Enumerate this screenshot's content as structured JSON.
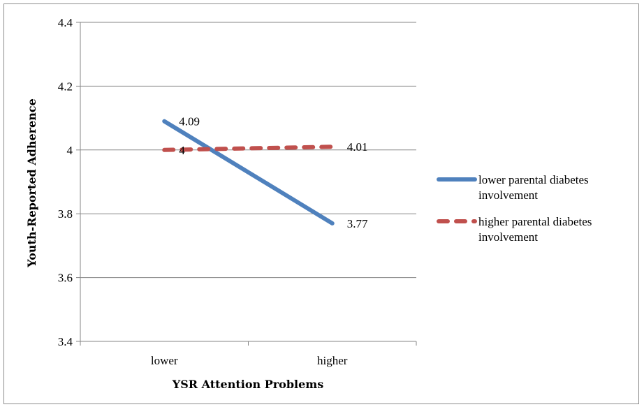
{
  "chart_data": {
    "type": "line",
    "xlabel": "YSR Attention Problems",
    "ylabel": "Youth-Reported Adherence",
    "categories": [
      "lower",
      "higher"
    ],
    "ylim": [
      3.4,
      4.4
    ],
    "yticks": [
      "3.4",
      "3.6",
      "3.8",
      "4",
      "4.2",
      "4.4"
    ],
    "grid": true,
    "legend_position": "right",
    "series": [
      {
        "name_lines": [
          "lower parental diabetes",
          "involvement"
        ],
        "values": [
          4.09,
          3.77
        ],
        "labels": [
          "4.09",
          "3.77"
        ],
        "color": "#4f81bd",
        "dash": "solid"
      },
      {
        "name_lines": [
          "higher parental diabetes",
          "involvement"
        ],
        "values": [
          4.0,
          4.01
        ],
        "labels": [
          "4",
          "4.01"
        ],
        "color": "#c0504d",
        "dash": "dashed"
      }
    ]
  }
}
